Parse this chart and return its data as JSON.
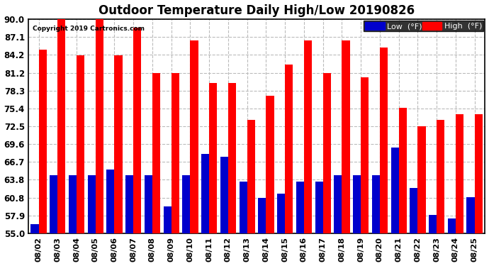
{
  "title": "Outdoor Temperature Daily High/Low 20190826",
  "copyright": "Copyright 2019 Cartronics.com",
  "dates": [
    "08/02",
    "08/03",
    "08/04",
    "08/05",
    "08/06",
    "08/07",
    "08/08",
    "08/09",
    "08/10",
    "08/11",
    "08/12",
    "08/13",
    "08/14",
    "08/15",
    "08/16",
    "08/17",
    "08/18",
    "08/19",
    "08/20",
    "08/21",
    "08/22",
    "08/23",
    "08/24",
    "08/25"
  ],
  "highs": [
    85.0,
    90.5,
    84.0,
    90.0,
    84.0,
    88.5,
    81.2,
    81.2,
    86.5,
    79.5,
    79.5,
    73.5,
    77.5,
    82.5,
    86.5,
    81.2,
    86.5,
    80.5,
    85.3,
    75.5,
    72.5,
    73.5,
    74.5,
    74.5
  ],
  "lows": [
    56.5,
    64.5,
    64.5,
    64.5,
    65.5,
    64.5,
    64.5,
    59.5,
    64.5,
    68.0,
    67.5,
    63.5,
    60.8,
    61.5,
    63.5,
    63.5,
    64.5,
    64.5,
    64.5,
    69.0,
    62.5,
    58.0,
    57.5,
    61.0
  ],
  "ymin": 55.0,
  "ymax": 90.0,
  "yticks": [
    55.0,
    57.9,
    60.8,
    63.8,
    66.7,
    69.6,
    72.5,
    75.4,
    78.3,
    81.2,
    84.2,
    87.1,
    90.0
  ],
  "bar_width": 0.42,
  "high_color": "#ff0000",
  "low_color": "#0000cc",
  "bg_color": "#ffffff",
  "grid_color": "#bbbbbb",
  "title_fontsize": 12,
  "tick_fontsize": 8.5,
  "legend_low_label": "Low  (°F)",
  "legend_high_label": "High  (°F)"
}
